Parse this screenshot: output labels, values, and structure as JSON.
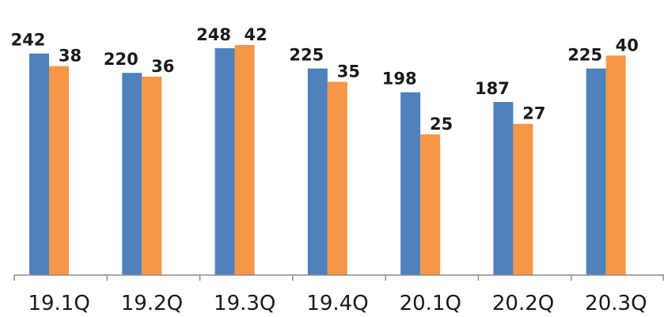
{
  "chart_data": {
    "type": "bar",
    "categories": [
      "19.1Q",
      "19.2Q",
      "19.3Q",
      "19.4Q",
      "20.1Q",
      "20.2Q",
      "20.3Q"
    ],
    "series": [
      {
        "values": [
          242,
          220,
          248,
          225,
          198,
          187,
          225
        ],
        "color": "#4f81bd"
      },
      {
        "values": [
          38,
          36,
          42,
          35,
          25,
          27,
          40
        ],
        "color": "#f79646"
      }
    ],
    "title": "",
    "xlabel": "",
    "ylabel": "",
    "axes_visible": {
      "x": true,
      "y": false
    },
    "grid": false,
    "legend": "none",
    "note": "The two series are drawn on different (hidden) scales; bar heights reflect each series' own scale."
  }
}
